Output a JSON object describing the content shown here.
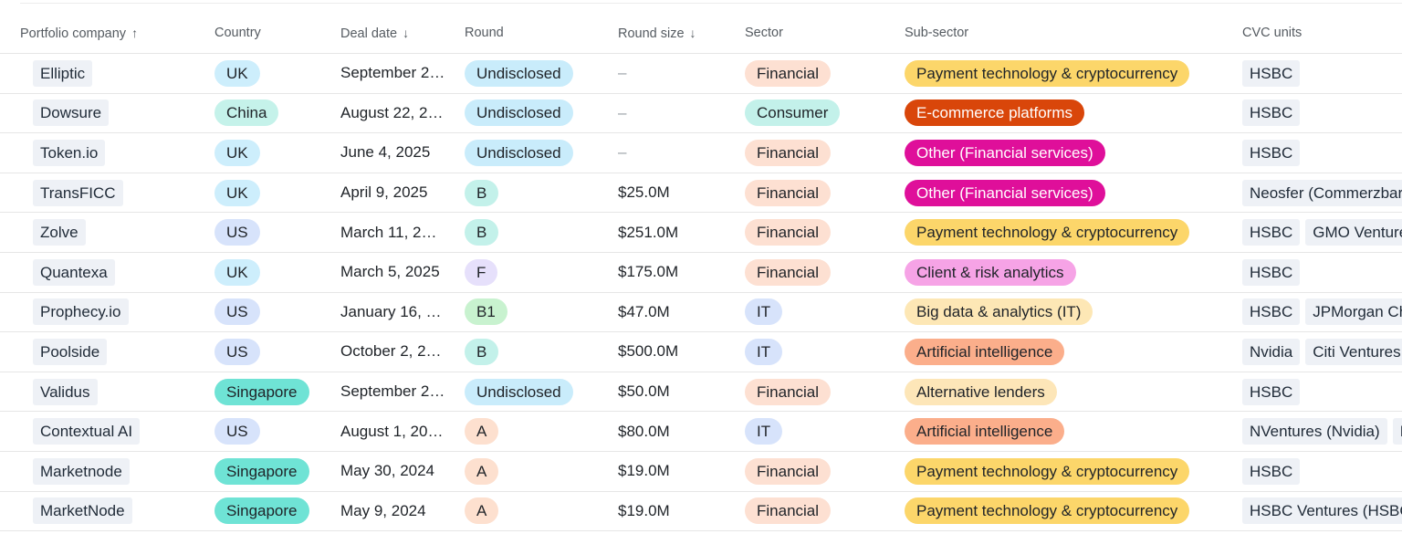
{
  "headers": {
    "portfolio_company": "Portfolio company",
    "country": "Country",
    "deal_date": "Deal date",
    "round": "Round",
    "round_size": "Round size",
    "sector": "Sector",
    "sub_sector": "Sub-sector",
    "cvc_units": "CVC units"
  },
  "sort_icons": {
    "portfolio_company": "arrow-up-icon",
    "deal_date": "arrow-down-icon",
    "round_size": "arrow-down-icon"
  },
  "colors": {
    "country": {
      "UK": "#cdeefc",
      "China": "#c5f2ea",
      "US": "#d7e3fb",
      "Singapore": "#6fe3d5"
    },
    "round": {
      "Undisclosed": "#c9ecfb",
      "B": "#c3f1ea",
      "F": "#e6e0fb",
      "B1": "#c8f2cf",
      "A": "#fde0cf"
    },
    "sector": {
      "Financial": "#fde0d2",
      "Consumer": "#c3f1ea",
      "IT": "#d7e3fb"
    },
    "sub_sector": {
      "Payment technology & cryptocurrency": [
        "#fcd66a",
        "#1f2328"
      ],
      "E-commerce platforms": [
        "#d9460a",
        "#ffffff"
      ],
      "Other (Financial services)": [
        "#df0f9a",
        "#ffffff"
      ],
      "Client & risk analytics": [
        "#f6a3e6",
        "#1f2328"
      ],
      "Big data & analytics (IT)": [
        "#fde7b5",
        "#1f2328"
      ],
      "Artificial intelligence": [
        "#fbae8b",
        "#1f2328"
      ],
      "Alternative lenders": [
        "#fde6b8",
        "#1f2328"
      ]
    }
  },
  "rows": [
    {
      "company": "Elliptic",
      "country": "UK",
      "date": "September 2…",
      "round": "Undisclosed",
      "size": "–",
      "sector": "Financial",
      "sub_sector": "Payment technology & cryptocurrency",
      "cvc": [
        "HSBC"
      ]
    },
    {
      "company": "Dowsure",
      "country": "China",
      "date": "August 22, 2…",
      "round": "Undisclosed",
      "size": "–",
      "sector": "Consumer",
      "sub_sector": "E-commerce platforms",
      "cvc": [
        "HSBC"
      ]
    },
    {
      "company": "Token.io",
      "country": "UK",
      "date": "June 4, 2025",
      "round": "Undisclosed",
      "size": "–",
      "sector": "Financial",
      "sub_sector": "Other (Financial services)",
      "cvc": [
        "HSBC"
      ]
    },
    {
      "company": "TransFICC",
      "country": "UK",
      "date": "April 9, 2025",
      "round": "B",
      "size": "$25.0M",
      "sector": "Financial",
      "sub_sector": "Other (Financial services)",
      "cvc": [
        "Neosfer (Commerzbar"
      ]
    },
    {
      "company": "Zolve",
      "country": "US",
      "date": "March 11, 2…",
      "round": "B",
      "size": "$251.0M",
      "sector": "Financial",
      "sub_sector": "Payment technology & cryptocurrency",
      "cvc": [
        "HSBC",
        "GMO Venture"
      ]
    },
    {
      "company": "Quantexa",
      "country": "UK",
      "date": "March 5, 2025",
      "round": "F",
      "size": "$175.0M",
      "sector": "Financial",
      "sub_sector": "Client & risk analytics",
      "cvc": [
        "HSBC"
      ]
    },
    {
      "company": "Prophecy.io",
      "country": "US",
      "date": "January 16, …",
      "round": "B1",
      "size": "$47.0M",
      "sector": "IT",
      "sub_sector": "Big data & analytics (IT)",
      "cvc": [
        "HSBC",
        "JPMorgan Cha"
      ]
    },
    {
      "company": "Poolside",
      "country": "US",
      "date": "October 2, 2…",
      "round": "B",
      "size": "$500.0M",
      "sector": "IT",
      "sub_sector": "Artificial intelligence",
      "cvc": [
        "Nvidia",
        "Citi Ventures"
      ]
    },
    {
      "company": "Validus",
      "country": "Singapore",
      "date": "September 2…",
      "round": "Undisclosed",
      "size": "$50.0M",
      "sector": "Financial",
      "sub_sector": "Alternative lenders",
      "cvc": [
        "HSBC"
      ]
    },
    {
      "company": "Contextual AI",
      "country": "US",
      "date": "August 1, 20…",
      "round": "A",
      "size": "$80.0M",
      "sector": "IT",
      "sub_sector": "Artificial intelligence",
      "cvc": [
        "NVentures (Nvidia)",
        "I"
      ]
    },
    {
      "company": "Marketnode",
      "country": "Singapore",
      "date": "May 30, 2024",
      "round": "A",
      "size": "$19.0M",
      "sector": "Financial",
      "sub_sector": "Payment technology & cryptocurrency",
      "cvc": [
        "HSBC"
      ]
    },
    {
      "company": "MarketNode",
      "country": "Singapore",
      "date": "May 9, 2024",
      "round": "A",
      "size": "$19.0M",
      "sector": "Financial",
      "sub_sector": "Payment technology & cryptocurrency",
      "cvc": [
        "HSBC Ventures (HSBC)"
      ]
    }
  ]
}
